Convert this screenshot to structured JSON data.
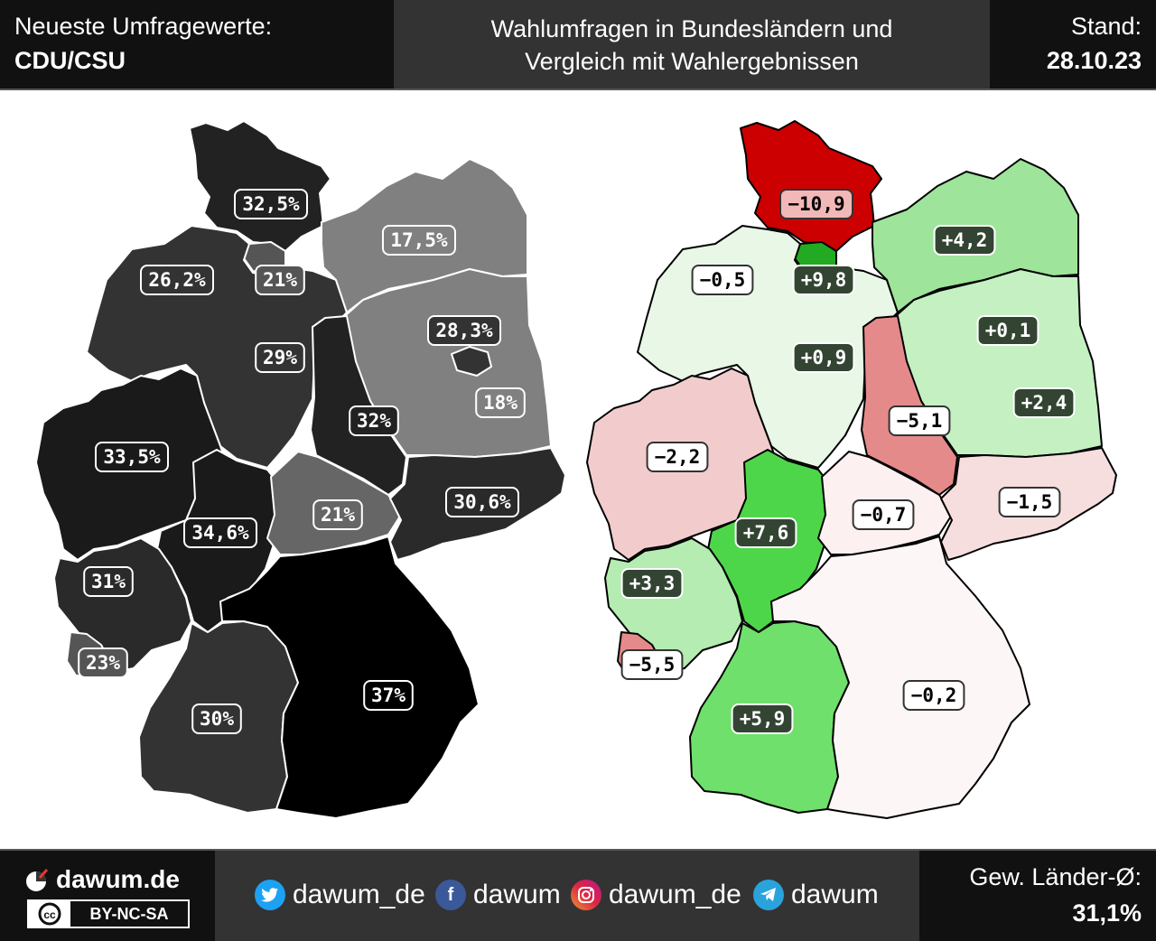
{
  "header": {
    "left_line1": "Neueste Umfragewerte:",
    "left_line2": "CDU/CSU",
    "title_line1": "Wahlumfragen in Bundesländern und",
    "title_line2": "Vergleich mit Wahlergebnissen",
    "date_label": "Stand:",
    "date_value": "28.10.23"
  },
  "left_map": {
    "states": [
      {
        "id": "SH",
        "value": "32,5%",
        "fill": "#222222"
      },
      {
        "id": "HH",
        "value": "21%",
        "fill": "#555555"
      },
      {
        "id": "HB",
        "value": "26,2%",
        "fill": "#333333"
      },
      {
        "id": "NI",
        "value": "29%",
        "fill": "#333333"
      },
      {
        "id": "MV",
        "value": "17,5%",
        "fill": "#808080"
      },
      {
        "id": "BB",
        "value": "18%",
        "fill": "#808080"
      },
      {
        "id": "BE",
        "value": "28,3%",
        "fill": "#333333"
      },
      {
        "id": "ST",
        "value": "32%",
        "fill": "#222222"
      },
      {
        "id": "NW",
        "value": "33,5%",
        "fill": "#1a1a1a"
      },
      {
        "id": "HE",
        "value": "34,6%",
        "fill": "#1a1a1a"
      },
      {
        "id": "TH",
        "value": "21%",
        "fill": "#666666"
      },
      {
        "id": "SN",
        "value": "30,6%",
        "fill": "#2a2a2a"
      },
      {
        "id": "RP",
        "value": "31%",
        "fill": "#2a2a2a"
      },
      {
        "id": "SL",
        "value": "23%",
        "fill": "#555555"
      },
      {
        "id": "BW",
        "value": "30%",
        "fill": "#333333"
      },
      {
        "id": "BY",
        "value": "37%",
        "fill": "#000000"
      }
    ]
  },
  "right_map": {
    "states": [
      {
        "id": "SH",
        "value": "−10,9",
        "fill": "#cc0000"
      },
      {
        "id": "HH",
        "value": "+9,8",
        "fill": "#22aa22"
      },
      {
        "id": "HB",
        "value": "−0,5",
        "fill": "#ffffff"
      },
      {
        "id": "NI",
        "value": "+0,9",
        "fill": "#e8f7e6"
      },
      {
        "id": "MV",
        "value": "+4,2",
        "fill": "#9ee49a"
      },
      {
        "id": "BE",
        "value": "+0,1",
        "fill": "#ffffff"
      },
      {
        "id": "BB",
        "value": "+2,4",
        "fill": "#c4f0c2"
      },
      {
        "id": "ST",
        "value": "−5,1",
        "fill": "#e58a8a"
      },
      {
        "id": "NW",
        "value": "−2,2",
        "fill": "#f2cccc"
      },
      {
        "id": "HE",
        "value": "+7,6",
        "fill": "#4ed64a"
      },
      {
        "id": "TH",
        "value": "−0,7",
        "fill": "#fdf0f0"
      },
      {
        "id": "SN",
        "value": "−1,5",
        "fill": "#f7dede"
      },
      {
        "id": "RP",
        "value": "+3,3",
        "fill": "#b4ecb2"
      },
      {
        "id": "SL",
        "value": "−5,5",
        "fill": "#e58a8a"
      },
      {
        "id": "BW",
        "value": "+5,9",
        "fill": "#70e06c"
      },
      {
        "id": "BY",
        "value": "−0,2",
        "fill": "#fdf6f6"
      }
    ]
  },
  "footer": {
    "brand": "dawum.de",
    "license": "BY-NC-SA",
    "cc_mark": "cc",
    "social": [
      {
        "icon": "twitter-icon",
        "label": "dawum_de",
        "color": "#1da1f2"
      },
      {
        "icon": "facebook-icon",
        "label": "dawum",
        "color": "#3b5998"
      },
      {
        "icon": "instagram-icon",
        "label": "dawum_de",
        "color": "#c13584"
      },
      {
        "icon": "telegram-icon",
        "label": "dawum",
        "color": "#2aa3dd"
      }
    ],
    "avg_label": "Gew. Länder-Ø:",
    "avg_value": "31,1%"
  }
}
